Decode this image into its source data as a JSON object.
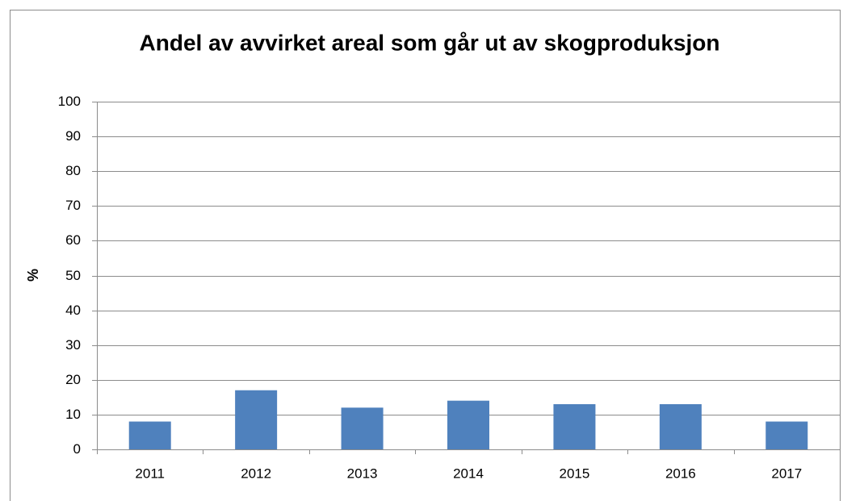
{
  "chart_data": {
    "type": "bar",
    "title": "Andel av avvirket areal som går ut av skogproduksjon",
    "y_label": "%",
    "categories": [
      "2011",
      "2012",
      "2013",
      "2014",
      "2015",
      "2016",
      "2017"
    ],
    "values": [
      8,
      17,
      12,
      14,
      13,
      13,
      8
    ],
    "color": "#4f81bd",
    "ylim": [
      0,
      100
    ],
    "yticks": [
      0,
      10,
      20,
      30,
      40,
      50,
      60,
      70,
      80,
      90,
      100
    ],
    "grid": true
  }
}
